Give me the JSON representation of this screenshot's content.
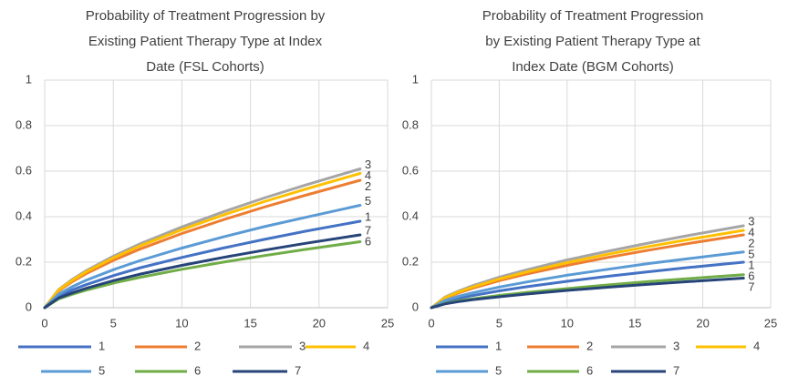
{
  "chart_data": [
    {
      "type": "line",
      "title": [
        "Probability of Treatment Progression by",
        "Existing Patient Therapy Type at Index",
        "Date (FSL Cohorts)"
      ],
      "x": [
        0,
        1,
        2,
        3,
        5,
        7,
        10,
        13,
        16,
        19,
        23
      ],
      "xlim": [
        0,
        25
      ],
      "xticks": [
        0,
        5,
        10,
        15,
        20,
        25
      ],
      "ylim": [
        0,
        1
      ],
      "yticks": [
        0,
        0.2,
        0.4,
        0.6,
        0.8,
        1
      ],
      "grid": true,
      "legend": "bottom",
      "series": [
        {
          "name": "1",
          "color": "#4472c4",
          "values": [
            0,
            0.049,
            0.078,
            0.101,
            0.141,
            0.176,
            0.221,
            0.262,
            0.3,
            0.336,
            0.38
          ]
        },
        {
          "name": "2",
          "color": "#ed7d31",
          "values": [
            0,
            0.073,
            0.114,
            0.149,
            0.208,
            0.259,
            0.326,
            0.386,
            0.442,
            0.494,
            0.56
          ]
        },
        {
          "name": "3",
          "color": "#a5a5a5",
          "values": [
            0,
            0.079,
            0.124,
            0.162,
            0.226,
            0.282,
            0.355,
            0.421,
            0.482,
            0.539,
            0.61
          ]
        },
        {
          "name": "4",
          "color": "#ffc000",
          "values": [
            0,
            0.077,
            0.12,
            0.157,
            0.219,
            0.273,
            0.343,
            0.407,
            0.466,
            0.521,
            0.59
          ]
        },
        {
          "name": "5",
          "color": "#5b9bd5",
          "values": [
            0,
            0.059,
            0.092,
            0.12,
            0.167,
            0.208,
            0.262,
            0.311,
            0.356,
            0.397,
            0.45
          ]
        },
        {
          "name": "6",
          "color": "#70ad47",
          "values": [
            0,
            0.038,
            0.059,
            0.077,
            0.108,
            0.134,
            0.169,
            0.2,
            0.229,
            0.256,
            0.29
          ]
        },
        {
          "name": "7",
          "color": "#264478",
          "values": [
            0,
            0.042,
            0.065,
            0.085,
            0.119,
            0.148,
            0.186,
            0.221,
            0.253,
            0.283,
            0.32
          ]
        }
      ]
    },
    {
      "type": "line",
      "title": [
        "Probability of Treatment Progression",
        "by Existing Patient Therapy Type at",
        "Index Date (BGM Cohorts)"
      ],
      "x": [
        0,
        1,
        2,
        3,
        5,
        7,
        10,
        13,
        16,
        19,
        23
      ],
      "xlim": [
        0,
        25
      ],
      "xticks": [
        0,
        5,
        10,
        15,
        20,
        25
      ],
      "ylim": [
        0,
        1
      ],
      "yticks": [
        0,
        0.2,
        0.4,
        0.6,
        0.8,
        1
      ],
      "grid": true,
      "legend": "bottom",
      "series": [
        {
          "name": "1",
          "color": "#4472c4",
          "values": [
            0,
            0.026,
            0.041,
            0.053,
            0.074,
            0.092,
            0.116,
            0.138,
            0.158,
            0.177,
            0.2
          ]
        },
        {
          "name": "2",
          "color": "#ed7d31",
          "values": [
            0,
            0.042,
            0.065,
            0.085,
            0.119,
            0.148,
            0.186,
            0.221,
            0.253,
            0.283,
            0.32
          ]
        },
        {
          "name": "3",
          "color": "#a5a5a5",
          "values": [
            0,
            0.047,
            0.073,
            0.096,
            0.134,
            0.166,
            0.21,
            0.248,
            0.284,
            0.318,
            0.36
          ]
        },
        {
          "name": "4",
          "color": "#ffc000",
          "values": [
            0,
            0.044,
            0.069,
            0.09,
            0.126,
            0.157,
            0.198,
            0.235,
            0.269,
            0.3,
            0.34
          ]
        },
        {
          "name": "5",
          "color": "#5b9bd5",
          "values": [
            0,
            0.032,
            0.05,
            0.065,
            0.091,
            0.113,
            0.143,
            0.169,
            0.194,
            0.216,
            0.245
          ]
        },
        {
          "name": "6",
          "color": "#70ad47",
          "values": [
            0,
            0.019,
            0.03,
            0.039,
            0.054,
            0.067,
            0.084,
            0.1,
            0.115,
            0.128,
            0.145
          ]
        },
        {
          "name": "7",
          "color": "#264478",
          "values": [
            0,
            0.017,
            0.027,
            0.035,
            0.048,
            0.06,
            0.076,
            0.09,
            0.103,
            0.115,
            0.13
          ]
        }
      ]
    }
  ]
}
